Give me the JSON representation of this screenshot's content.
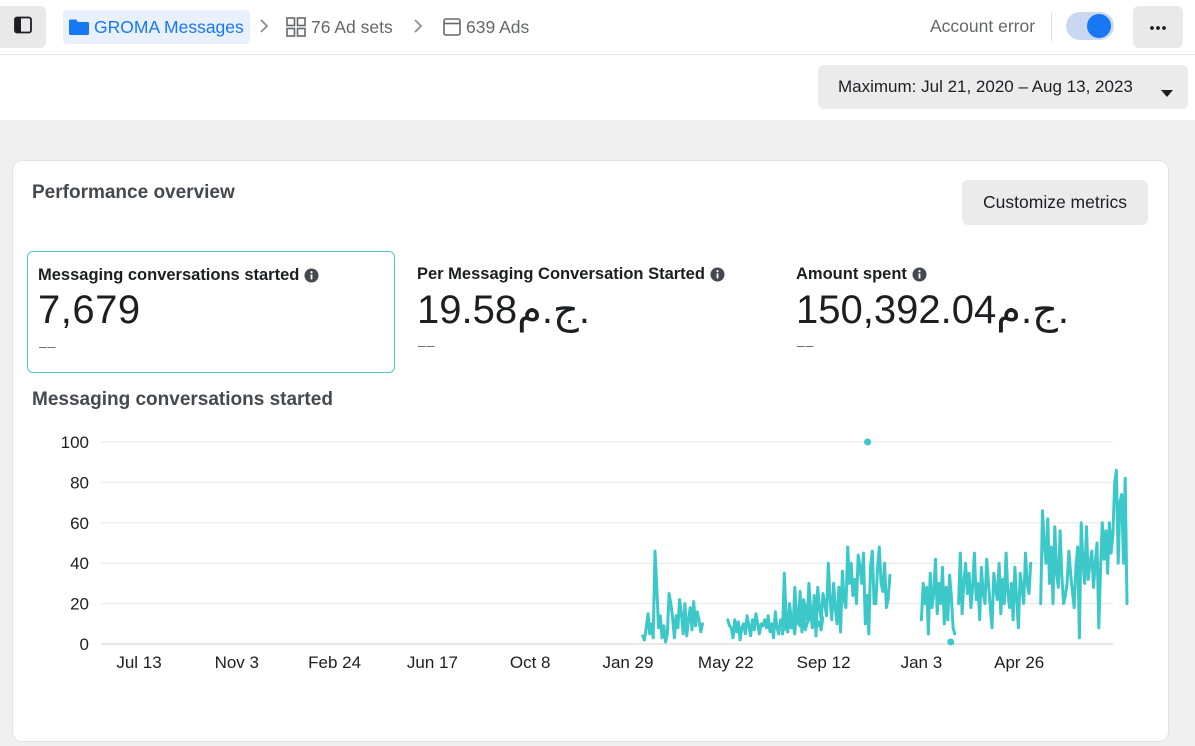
{
  "breadcrumb": {
    "campaign": "GROMA Messages",
    "adsets": "76 Ad sets",
    "ads": "639 Ads"
  },
  "header": {
    "status": "Account error",
    "toggle_on": true
  },
  "date_range": {
    "label": "Maximum: Jul 21, 2020 – Aug 13, 2023"
  },
  "card": {
    "title": "Performance overview",
    "customize_label": "Customize metrics",
    "metrics": [
      {
        "label": "Messaging conversations started",
        "value": "7,679",
        "delta": "––"
      },
      {
        "label": "Per Messaging Conversation Started",
        "value": "19.58ج.م.",
        "delta": "––"
      },
      {
        "label": "Amount spent",
        "value": "150,392.04ج.م.",
        "delta": "––"
      }
    ]
  },
  "colors": {
    "accent": "#1877f2",
    "series": "#3cc8c8",
    "selected_border": "#4bc7ce"
  },
  "chart_data": {
    "type": "line",
    "title": "Messaging conversations started",
    "y_ticks": [
      0,
      20,
      40,
      60,
      80,
      100
    ],
    "ylim": [
      0,
      100
    ],
    "x_tick_labels": [
      "Jul 13",
      "Nov 3",
      "Feb 24",
      "Jun 17",
      "Oct 8",
      "Jan 29",
      "May 22",
      "Sep 12",
      "Jan 3",
      "Apr 26"
    ],
    "grid": true,
    "series": [
      {
        "segments": [
          {
            "x0": 5.15,
            "values": [
              4,
              2,
              8,
              15,
              5,
              10,
              3,
              46,
              28,
              8,
              14,
              3,
              9,
              1,
              5,
              25,
              20,
              13,
              3,
              14,
              8,
              22,
              15,
              5,
              20,
              4,
              12,
              18,
              7,
              21,
              9,
              16,
              12,
              6,
              10
            ]
          },
          {
            "x0": 6.02,
            "values": [
              12,
              9,
              8,
              3,
              12,
              6,
              11,
              2,
              8,
              10,
              5,
              14,
              9,
              4,
              12,
              7,
              15,
              10,
              5,
              10,
              9,
              12,
              8,
              14,
              6,
              10,
              3,
              16,
              8,
              5,
              12,
              10,
              7,
              14,
              6,
              13,
              8,
              11,
              5,
              16,
              12,
              9,
              13,
              15,
              7,
              10,
              12,
              17,
              8,
              11,
              14,
              9,
              11,
              7,
              13
            ]
          },
          {
            "x0": 6.58,
            "values": [
              5,
              35,
              15,
              6,
              20,
              12,
              8,
              28,
              14,
              10,
              26,
              6,
              22,
              18,
              12,
              30,
              16,
              10,
              24,
              4,
              28,
              18,
              12,
              25,
              20,
              14,
              40,
              22,
              12,
              30,
              18,
              10,
              28,
              6,
              36,
              22,
              18,
              48,
              30,
              40,
              24,
              32,
              20,
              44,
              38,
              30,
              45,
              10,
              24,
              5,
              38,
              46,
              20,
              20,
              38,
              48,
              30,
              26,
              40,
              18,
              22,
              34
            ]
          },
          {
            "x0": 8.0,
            "values": [
              12,
              30,
              20,
              28,
              5,
              35,
              18,
              25,
              42,
              15,
              30,
              20,
              38,
              10,
              28,
              12,
              34,
              24,
              8,
              5
            ]
          },
          {
            "x0": 8.38,
            "values": [
              20,
              45,
              15,
              30,
              40,
              25,
              35,
              18,
              28,
              45,
              22,
              30,
              12,
              38,
              25,
              20,
              42,
              30,
              18,
              8,
              35,
              28,
              22,
              40,
              15,
              32,
              20,
              45,
              25,
              18,
              30,
              12,
              38,
              22,
              8,
              35,
              28,
              20,
              45,
              30,
              25,
              40
            ]
          },
          {
            "x0": 9.22,
            "values": [
              20,
              66,
              50,
              40,
              62,
              30,
              48,
              20,
              58,
              35,
              28,
              56,
              34,
              20,
              24,
              30,
              46,
              35,
              26,
              18,
              38,
              48,
              3,
              60,
              40,
              30,
              58,
              32,
              40,
              46,
              28,
              40,
              50,
              8,
              38,
              60,
              42,
              56,
              35,
              60,
              45,
              54,
              80,
              86,
              40,
              70,
              74,
              40,
              82,
              20
            ]
          }
        ]
      }
    ],
    "outliers": [
      {
        "x": 7.45,
        "y": 100
      },
      {
        "x": 8.3,
        "y": 1
      }
    ]
  }
}
